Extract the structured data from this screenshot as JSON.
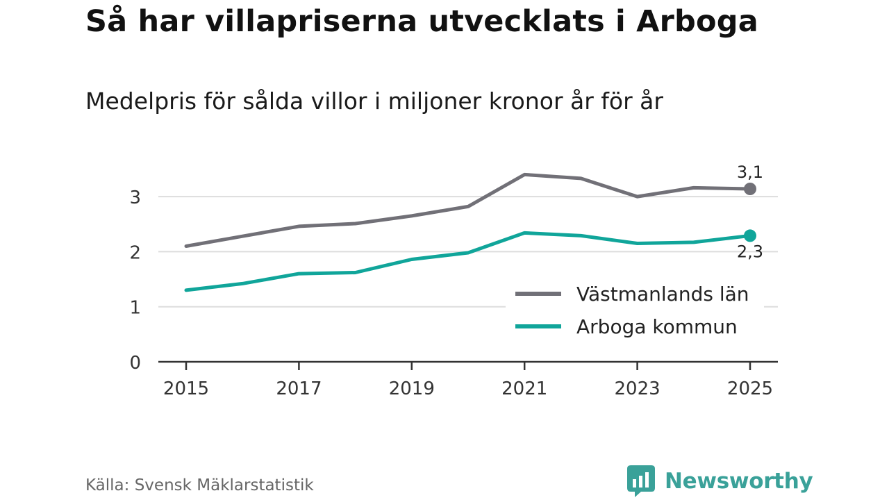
{
  "title": "Så har villapriserna utvecklats i Arboga",
  "subtitle": "Medelpris för sålda villor i miljoner kronor år för år",
  "source": "Källa: Svensk Mäklarstatistik",
  "brand": "Newsworthy",
  "colors": {
    "series_lan": "#717077",
    "series_kommun": "#10a59a",
    "grid": "#dddddd",
    "axis": "#333333",
    "brand": "#3aa199"
  },
  "icons": {
    "brand_logo": "newsworthy-logo-icon"
  },
  "chart_data": {
    "type": "line",
    "title": "Så har villapriserna utvecklats i Arboga",
    "subtitle": "Medelpris för sålda villor i miljoner kronor år för år",
    "xlabel": "",
    "ylabel": "",
    "x": [
      2015,
      2016,
      2017,
      2018,
      2019,
      2020,
      2021,
      2022,
      2023,
      2024,
      2025
    ],
    "x_ticks": [
      2015,
      2017,
      2019,
      2021,
      2023,
      2025
    ],
    "x_tick_labels": [
      "2015",
      "2017",
      "2019",
      "2021",
      "2023",
      "2025"
    ],
    "y_ticks": [
      0,
      1,
      2,
      3
    ],
    "y_tick_labels": [
      "0",
      "1",
      "2",
      "3"
    ],
    "ylim": [
      0,
      3.5
    ],
    "grid": true,
    "legend_position": "bottom-right",
    "series": [
      {
        "name": "Västmanlands län",
        "values": [
          2.1,
          2.28,
          2.46,
          2.51,
          2.65,
          2.82,
          3.4,
          3.33,
          3.0,
          3.16,
          3.14
        ],
        "end_label": "3,1"
      },
      {
        "name": "Arboga kommun",
        "values": [
          1.3,
          1.42,
          1.6,
          1.62,
          1.86,
          1.98,
          2.34,
          2.29,
          2.15,
          2.17,
          2.29
        ],
        "end_label": "2,3"
      }
    ]
  }
}
